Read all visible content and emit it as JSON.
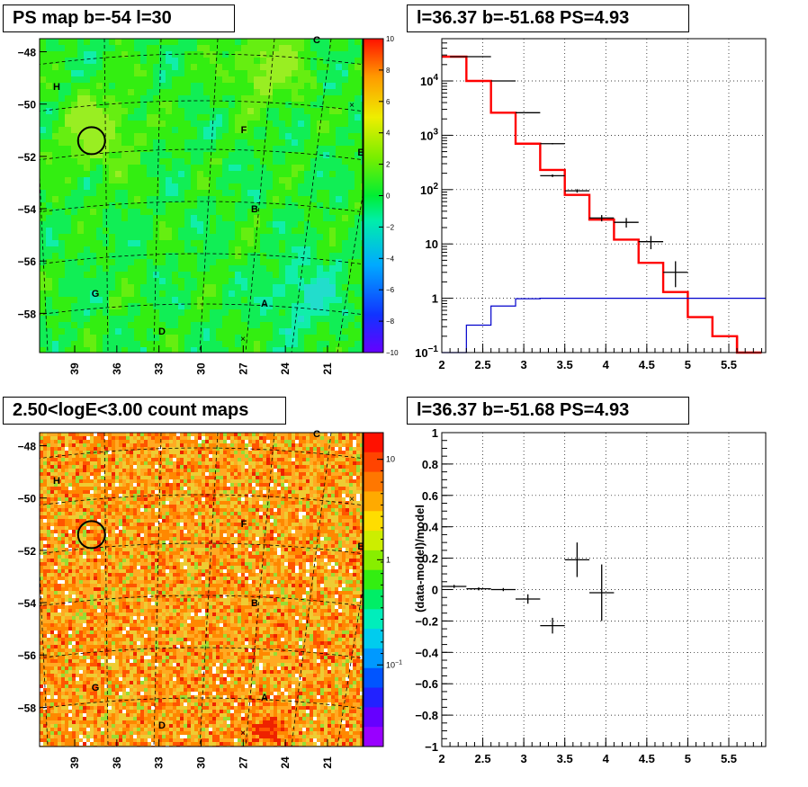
{
  "panels": {
    "ps_map_title": "PS map b=-54 l=30",
    "spectrum_title": "l=36.37 b=-51.68 PS=4.93",
    "count_map_title": "2.50<logE<3.00 count maps",
    "residual_title": "l=36.37 b=-51.68 PS=4.93"
  },
  "chart_data": [
    {
      "type": "heatmap",
      "title": "PS map b=-54 l=30",
      "x_ticks": [
        "39",
        "36",
        "33",
        "30",
        "27",
        "24",
        "21"
      ],
      "y_ticks": [
        "-48",
        "-50",
        "-52",
        "-54",
        "-56",
        "-58"
      ],
      "xlim": [
        41.5,
        18.5
      ],
      "ylim": [
        -59.5,
        -47.5
      ],
      "colorbar": {
        "min": -10,
        "max": 10,
        "ticks": [
          "10",
          "8",
          "6",
          "4",
          "2",
          "0",
          "−2",
          "−4",
          "−6",
          "−8",
          "−10"
        ]
      },
      "source_labels": [
        "A",
        "B",
        "C",
        "D",
        "E",
        "F",
        "G",
        "H"
      ],
      "circled_source": {
        "l": 37.8,
        "b": -51.4
      },
      "grid": true
    },
    {
      "type": "line",
      "title": "l=36.37 b=-51.68 PS=4.93",
      "xlabel": "",
      "ylabel": "",
      "x_ticks": [
        "2",
        "2.5",
        "3",
        "3.5",
        "4",
        "4.5",
        "5",
        "5.5"
      ],
      "y_ticks": [
        "10^-1",
        "1",
        "10",
        "10^2",
        "10^3",
        "10^4"
      ],
      "xlim": [
        2,
        5.95
      ],
      "ylim": [
        0.1,
        60000
      ],
      "y_log": true,
      "grid": true,
      "series": [
        {
          "step_edges": [
            2.0,
            2.3,
            2.6,
            2.9,
            3.2,
            3.5,
            3.8,
            4.1,
            4.4,
            4.7,
            5.0,
            5.3,
            5.6,
            5.9
          ],
          "values": [
            28000,
            10000,
            2600,
            700,
            230,
            80,
            28,
            12,
            4.5,
            1.3,
            0.45,
            0.2,
            0.1
          ],
          "color": "#ff0000"
        },
        {
          "step_edges": [
            2.0,
            2.3,
            2.6,
            2.9,
            3.2,
            5.95
          ],
          "values": [
            0.1,
            0.32,
            0.72,
            0.98,
            1.0
          ],
          "color": "#0000cc"
        }
      ],
      "points": [
        {
          "x": 2.35,
          "y": 28000,
          "xerr": 0.25,
          "yerr_lo": 27500,
          "yerr_hi": 28500
        },
        {
          "x": 2.75,
          "y": 10000,
          "xerr": 0.15,
          "yerr_lo": 9900,
          "yerr_hi": 10100
        },
        {
          "x": 3.05,
          "y": 2600,
          "xerr": 0.15,
          "yerr_lo": 2560,
          "yerr_hi": 2640
        },
        {
          "x": 3.35,
          "y": 700,
          "xerr": 0.15,
          "yerr_lo": 680,
          "yerr_hi": 720
        },
        {
          "x": 3.35,
          "y": 180,
          "xerr": 0.15,
          "yerr_lo": 170,
          "yerr_hi": 190
        },
        {
          "x": 3.65,
          "y": 95,
          "xerr": 0.15,
          "yerr_lo": 88,
          "yerr_hi": 102
        },
        {
          "x": 3.95,
          "y": 30,
          "xerr": 0.15,
          "yerr_lo": 26,
          "yerr_hi": 34
        },
        {
          "x": 4.25,
          "y": 25,
          "xerr": 0.15,
          "yerr_lo": 20,
          "yerr_hi": 30
        },
        {
          "x": 4.55,
          "y": 11,
          "xerr": 0.15,
          "yerr_lo": 8,
          "yerr_hi": 14
        },
        {
          "x": 4.85,
          "y": 3,
          "xerr": 0.15,
          "yerr_lo": 1.6,
          "yerr_hi": 4.8
        }
      ]
    },
    {
      "type": "heatmap",
      "title": "2.50<logE<3.00 count maps",
      "x_ticks": [
        "39",
        "36",
        "33",
        "30",
        "27",
        "24",
        "21"
      ],
      "y_ticks": [
        "-48",
        "-50",
        "-52",
        "-54",
        "-56",
        "-58"
      ],
      "xlim": [
        41.5,
        18.5
      ],
      "ylim": [
        -59.5,
        -47.5
      ],
      "colorbar": {
        "log": true,
        "ticks": [
          "10",
          "1",
          "10^-1"
        ]
      },
      "source_labels": [
        "A",
        "B",
        "C",
        "D",
        "E",
        "F",
        "G",
        "H"
      ],
      "circled_source": {
        "l": 37.8,
        "b": -51.4
      },
      "grid": true
    },
    {
      "type": "scatter",
      "title": "l=36.37 b=-51.68 PS=4.93",
      "xlabel": "",
      "ylabel": "(data-model)/model",
      "x_ticks": [
        "2",
        "2.5",
        "3",
        "3.5",
        "4",
        "4.5",
        "5",
        "5.5"
      ],
      "y_ticks": [
        "1",
        "0.8",
        "0.6",
        "0.4",
        "0.2",
        "0",
        "−0.2",
        "−0.4",
        "−0.6",
        "−0.8",
        "−1"
      ],
      "xlim": [
        2,
        5.95
      ],
      "ylim": [
        -1,
        1
      ],
      "grid": true,
      "points": [
        {
          "x": 2.15,
          "y": 0.02,
          "xerr": 0.15,
          "yerr": 0.01
        },
        {
          "x": 2.45,
          "y": 0.005,
          "xerr": 0.15,
          "yerr": 0.01
        },
        {
          "x": 2.75,
          "y": 0.0,
          "xerr": 0.15,
          "yerr": 0.01
        },
        {
          "x": 3.05,
          "y": -0.06,
          "xerr": 0.15,
          "yerr": 0.03
        },
        {
          "x": 3.35,
          "y": -0.23,
          "xerr": 0.15,
          "yerr": 0.05
        },
        {
          "x": 3.65,
          "y": 0.19,
          "xerr": 0.15,
          "yerr": 0.11
        },
        {
          "x": 3.95,
          "y": -0.02,
          "xerr": 0.15,
          "yerr": 0.18
        }
      ]
    }
  ]
}
